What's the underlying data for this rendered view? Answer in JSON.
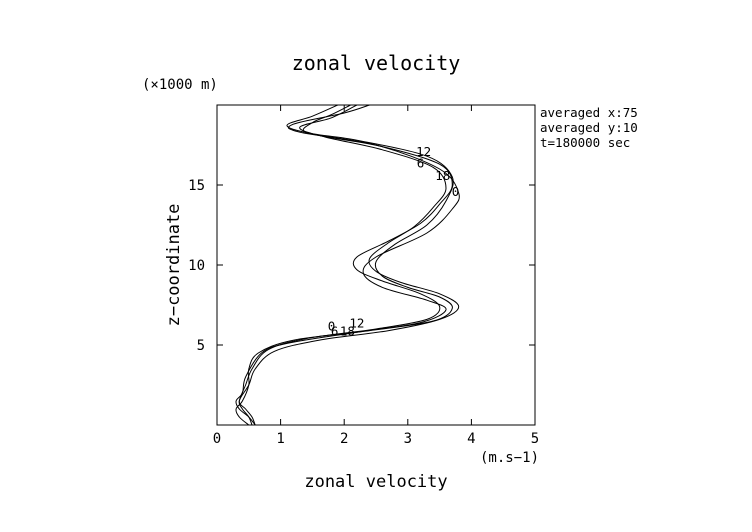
{
  "chart_data": {
    "type": "line",
    "title": "zonal velocity",
    "xlabel": "zonal velocity",
    "x_unit": "(m.s−1)",
    "ylabel": "z−coordinate",
    "y_unit": "(×1000 m)",
    "xlim": [
      0,
      5
    ],
    "ylim": [
      0,
      20
    ],
    "x_ticks": [
      "0",
      "1",
      "2",
      "3",
      "4",
      "5"
    ],
    "y_ticks": [
      "5",
      "10",
      "15"
    ],
    "grid": false,
    "annotations": [
      "averaged  x:75",
      "averaged  y:10",
      "t=180000 sec"
    ],
    "series": [
      {
        "label_top": "0",
        "label_bottom": "0",
        "points": [
          [
            0.6,
            0
          ],
          [
            0.5,
            0.5
          ],
          [
            0.35,
            1
          ],
          [
            0.3,
            1.5
          ],
          [
            0.4,
            2
          ],
          [
            0.45,
            3
          ],
          [
            0.7,
            4.5
          ],
          [
            1.1,
            5.1
          ],
          [
            2.2,
            5.8
          ],
          [
            3.2,
            6.4
          ],
          [
            3.6,
            7.2
          ],
          [
            3.3,
            7.8
          ],
          [
            2.6,
            8.6
          ],
          [
            2.3,
            9.5
          ],
          [
            2.5,
            10.5
          ],
          [
            3.3,
            12
          ],
          [
            3.7,
            13.5
          ],
          [
            3.8,
            14.5
          ],
          [
            3.5,
            16
          ],
          [
            2.5,
            17.5
          ],
          [
            1.3,
            18.3
          ],
          [
            1.2,
            18.8
          ],
          [
            2.0,
            19.5
          ],
          [
            2.4,
            20
          ]
        ]
      },
      {
        "label_top": "12",
        "label_bottom": "12",
        "points": [
          [
            0.5,
            0
          ],
          [
            0.35,
            0.5
          ],
          [
            0.3,
            1
          ],
          [
            0.4,
            1.5
          ],
          [
            0.5,
            2.5
          ],
          [
            0.5,
            3.5
          ],
          [
            0.65,
            4.5
          ],
          [
            1.2,
            5.3
          ],
          [
            2.4,
            5.9
          ],
          [
            3.4,
            6.5
          ],
          [
            3.7,
            7.3
          ],
          [
            3.5,
            8
          ],
          [
            3.0,
            8.6
          ],
          [
            2.6,
            9.3
          ],
          [
            2.5,
            10.2
          ],
          [
            2.8,
            11.3
          ],
          [
            3.3,
            12.5
          ],
          [
            3.6,
            14
          ],
          [
            3.7,
            15.5
          ],
          [
            3.3,
            16.8
          ],
          [
            2.2,
            17.8
          ],
          [
            1.4,
            18.3
          ],
          [
            1.5,
            18.9
          ],
          [
            1.8,
            19.4
          ],
          [
            2.1,
            20
          ]
        ]
      },
      {
        "label_top": "6",
        "label_bottom": "6",
        "points": [
          [
            0.55,
            0
          ],
          [
            0.5,
            0.5
          ],
          [
            0.4,
            1
          ],
          [
            0.35,
            1.5
          ],
          [
            0.45,
            2.5
          ],
          [
            0.55,
            3.5
          ],
          [
            0.8,
            4.7
          ],
          [
            1.4,
            5.4
          ],
          [
            2.5,
            6
          ],
          [
            3.3,
            6.6
          ],
          [
            3.5,
            7.4
          ],
          [
            3.2,
            8.2
          ],
          [
            2.6,
            9
          ],
          [
            2.2,
            9.7
          ],
          [
            2.2,
            10.5
          ],
          [
            2.7,
            11.5
          ],
          [
            3.2,
            12.6
          ],
          [
            3.5,
            13.8
          ],
          [
            3.7,
            15
          ],
          [
            3.5,
            16.3
          ],
          [
            2.6,
            17.4
          ],
          [
            1.6,
            18.1
          ],
          [
            1.1,
            18.7
          ],
          [
            1.5,
            19.3
          ],
          [
            1.9,
            20
          ]
        ]
      },
      {
        "label_top": "18",
        "label_bottom": "18",
        "points": [
          [
            0.6,
            0
          ],
          [
            0.55,
            0.5
          ],
          [
            0.45,
            1
          ],
          [
            0.35,
            1.5
          ],
          [
            0.5,
            2.5
          ],
          [
            0.6,
            3.5
          ],
          [
            0.9,
            4.6
          ],
          [
            1.6,
            5.3
          ],
          [
            2.7,
            5.9
          ],
          [
            3.5,
            6.6
          ],
          [
            3.8,
            7.4
          ],
          [
            3.5,
            8.2
          ],
          [
            2.9,
            8.9
          ],
          [
            2.5,
            9.6
          ],
          [
            2.4,
            10.4
          ],
          [
            2.7,
            11.4
          ],
          [
            3.1,
            12.4
          ],
          [
            3.4,
            13.6
          ],
          [
            3.6,
            14.8
          ],
          [
            3.4,
            16.1
          ],
          [
            2.6,
            17.2
          ],
          [
            1.7,
            18
          ],
          [
            1.3,
            18.6
          ],
          [
            1.8,
            19.2
          ],
          [
            2.2,
            20
          ]
        ]
      }
    ]
  }
}
